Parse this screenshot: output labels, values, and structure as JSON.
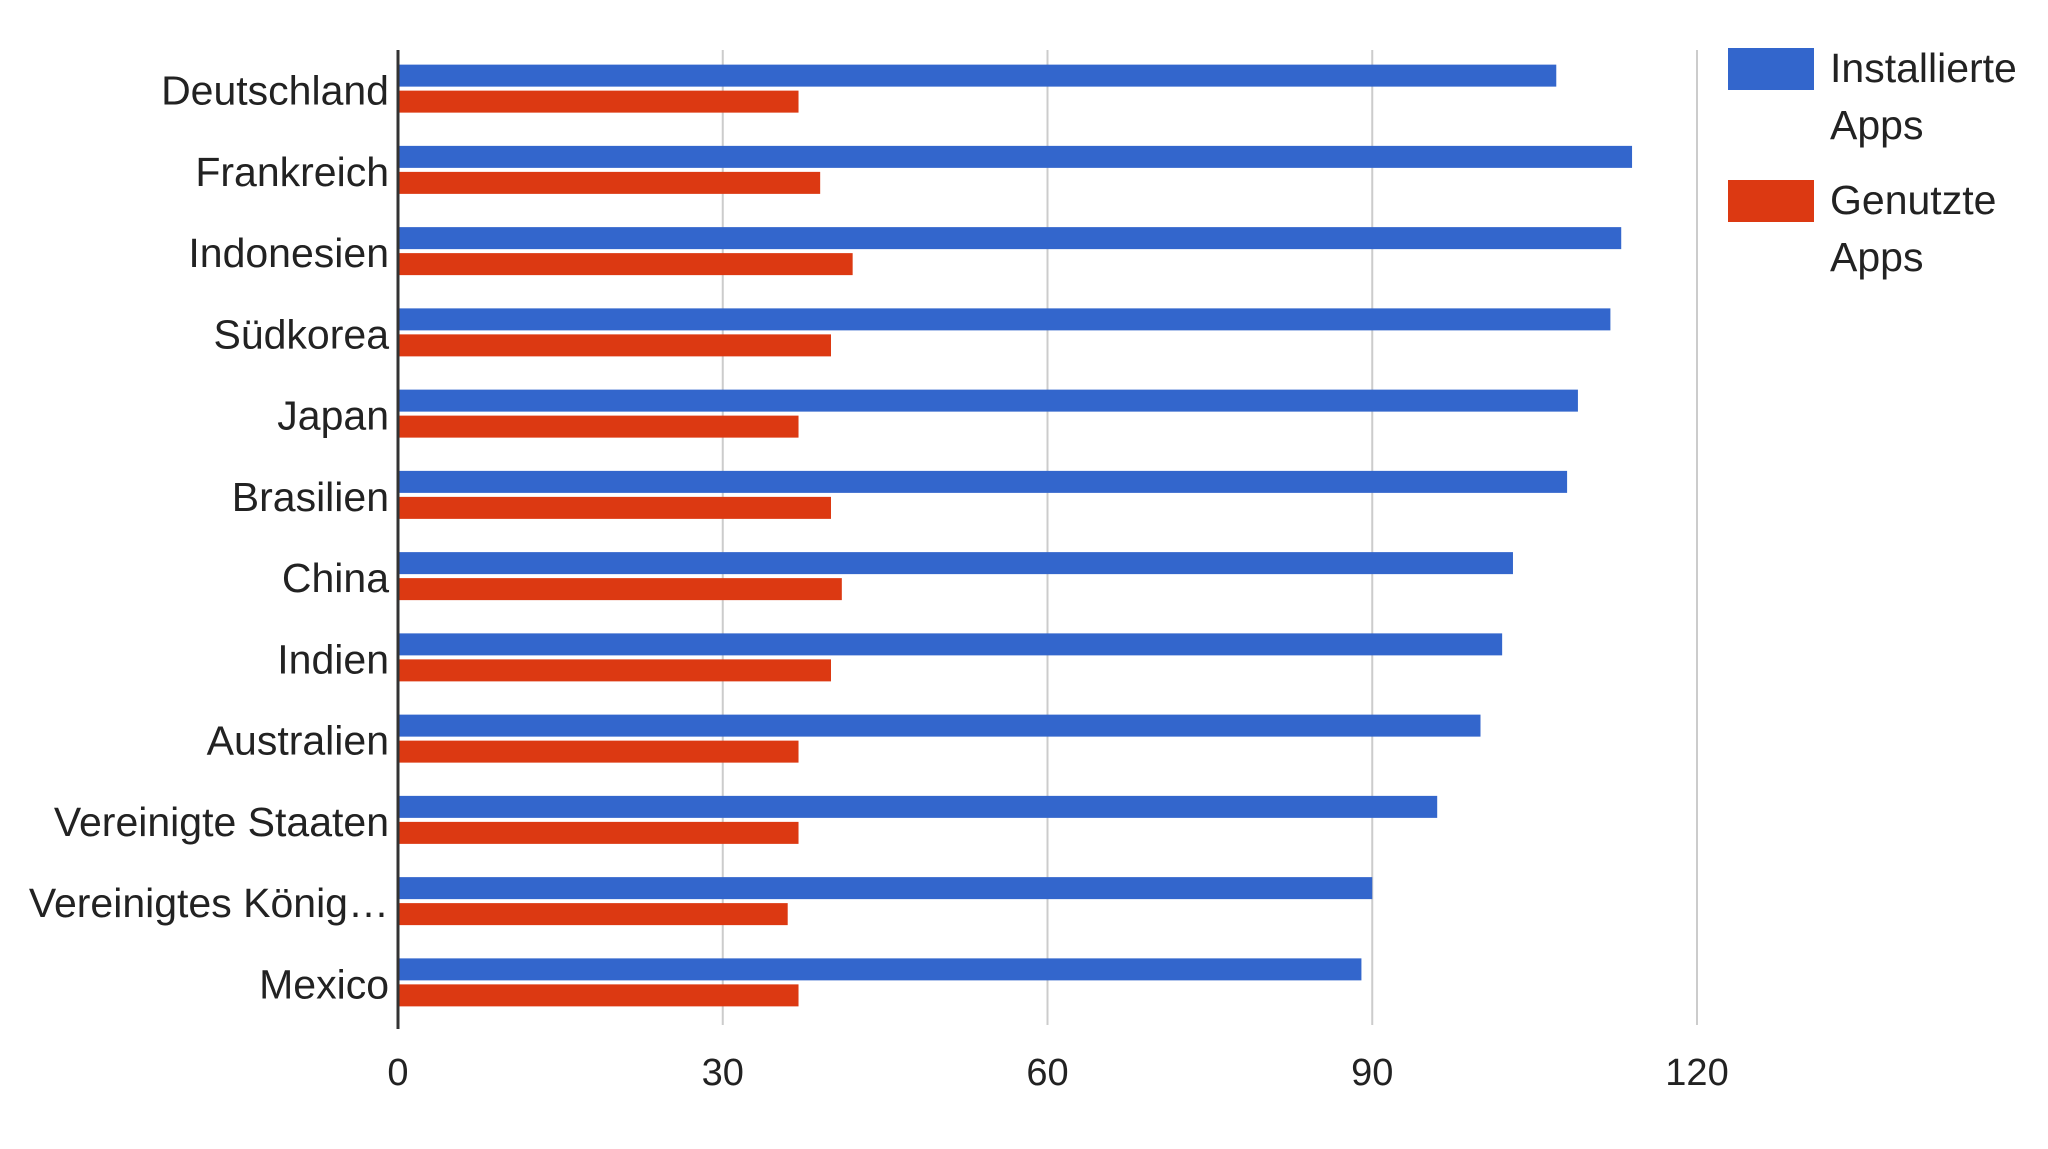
{
  "chart_data": {
    "type": "bar",
    "orientation": "horizontal",
    "categories": [
      "Deutschland",
      "Frankreich",
      "Indonesien",
      "Südkorea",
      "Japan",
      "Brasilien",
      "China",
      "Indien",
      "Australien",
      "Vereinigte Staaten",
      "Vereinigtes König…",
      "Mexico"
    ],
    "series": [
      {
        "name": "Installierte Apps",
        "color": "#3366cc",
        "values": [
          107,
          114,
          113,
          112,
          109,
          108,
          103,
          102,
          100,
          96,
          90,
          89
        ]
      },
      {
        "name": "Genutzte Apps",
        "color": "#dc3912",
        "values": [
          37,
          39,
          42,
          40,
          37,
          40,
          41,
          40,
          37,
          37,
          36,
          37
        ]
      }
    ],
    "xlim": [
      0,
      120
    ],
    "xticks": [
      "0",
      "30",
      "60",
      "90",
      "120"
    ],
    "grid": true,
    "legend_position": "right"
  }
}
